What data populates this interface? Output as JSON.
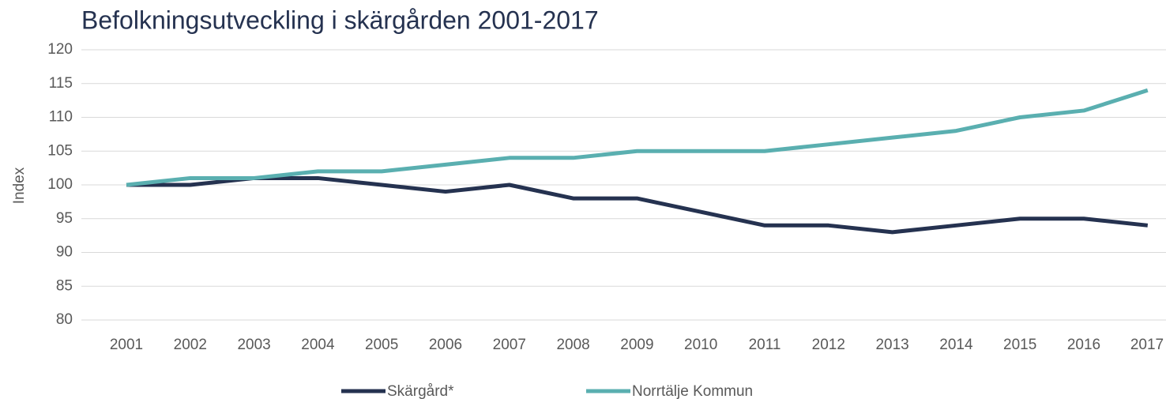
{
  "chart_data": {
    "type": "line",
    "title": "Befolkningsutveckling i skärgården 2001-2017",
    "y_label": "Index",
    "categories": [
      "2001",
      "2002",
      "2003",
      "2004",
      "2005",
      "2006",
      "2007",
      "2008",
      "2009",
      "2010",
      "2011",
      "2012",
      "2013",
      "2014",
      "2015",
      "2016",
      "2017"
    ],
    "series": [
      {
        "name": "Skärgård*",
        "color": "#253250",
        "values": [
          100,
          100,
          101,
          101,
          100,
          99,
          100,
          98,
          98,
          96,
          94,
          94,
          93,
          94,
          95,
          95,
          94
        ]
      },
      {
        "name": "Norrtälje Kommun",
        "color": "#5aafb0",
        "values": [
          100,
          101,
          101,
          102,
          102,
          103,
          104,
          104,
          105,
          105,
          105,
          106,
          107,
          108,
          110,
          111,
          114
        ]
      }
    ],
    "ylim": [
      80,
      120
    ],
    "yticks": [
      80,
      85,
      90,
      95,
      100,
      105,
      110,
      115,
      120
    ],
    "grid": true,
    "legend": "bottom"
  }
}
